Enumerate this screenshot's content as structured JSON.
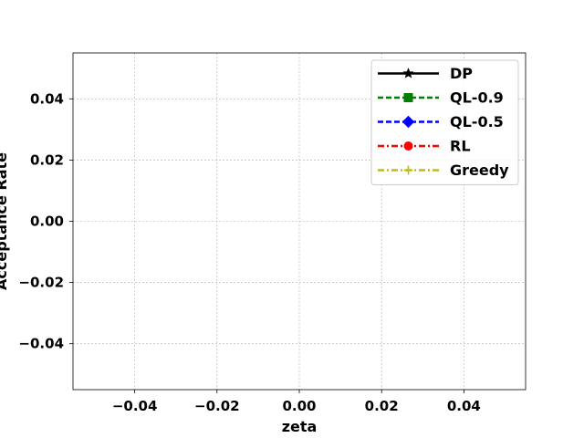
{
  "chart_data": {
    "type": "line",
    "title": "",
    "xlabel": "zeta",
    "ylabel": "Acceptance Rate",
    "xlim": [
      -0.055,
      0.055
    ],
    "ylim": [
      -0.055,
      0.055
    ],
    "x_ticks": [
      -0.04,
      -0.02,
      0.0,
      0.02,
      0.04
    ],
    "x_tick_labels": [
      "−0.04",
      "−0.02",
      "0.00",
      "0.02",
      "0.04"
    ],
    "y_ticks": [
      -0.04,
      -0.02,
      0.0,
      0.02,
      0.04
    ],
    "y_tick_labels": [
      "−0.04",
      "−0.02",
      "0.00",
      "0.02",
      "0.04"
    ],
    "grid": true,
    "legend_position": "top-right",
    "series": [
      {
        "name": "DP",
        "color": "#000000",
        "linestyle": "solid",
        "marker": "star",
        "x": [],
        "y": []
      },
      {
        "name": "QL-0.9",
        "color": "#008000",
        "linestyle": "dashed",
        "marker": "square",
        "x": [],
        "y": []
      },
      {
        "name": "QL-0.5",
        "color": "#0000ff",
        "linestyle": "dashed",
        "marker": "diamond",
        "x": [],
        "y": []
      },
      {
        "name": "RL",
        "color": "#ff0000",
        "linestyle": "dashdot",
        "marker": "circle",
        "x": [],
        "y": []
      },
      {
        "name": "Greedy",
        "color": "#bfbf00",
        "linestyle": "dashdot",
        "marker": "plus",
        "x": [],
        "y": []
      }
    ]
  }
}
